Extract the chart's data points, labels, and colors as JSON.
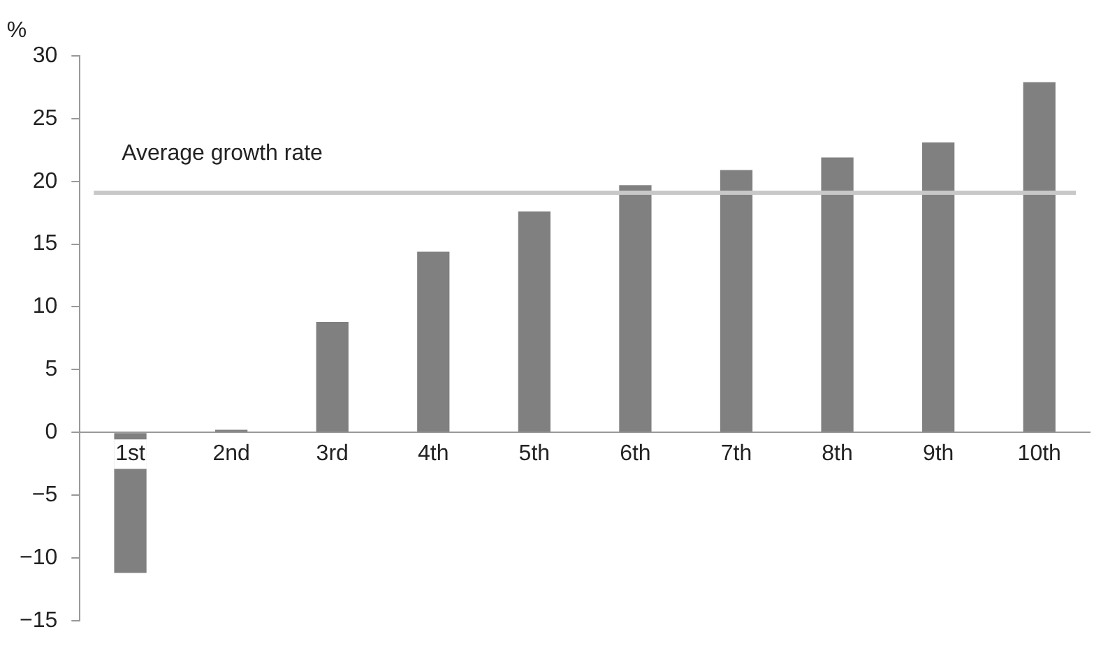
{
  "chart_data": {
    "type": "bar",
    "ylabel": "%",
    "categories": [
      "1st",
      "2nd",
      "3rd",
      "4th",
      "5th",
      "6th",
      "7th",
      "8th",
      "9th",
      "10th"
    ],
    "values": [
      -11.2,
      0.2,
      8.8,
      14.4,
      17.6,
      19.7,
      20.9,
      21.9,
      23.1,
      27.9
    ],
    "color": "#808080",
    "ylim": [
      -15,
      30
    ],
    "yticks": [
      {
        "value": -15,
        "label": "−15"
      },
      {
        "value": -10,
        "label": "−10"
      },
      {
        "value": -5,
        "label": "−5"
      },
      0,
      5,
      10,
      15,
      20,
      25,
      30
    ],
    "ref_lines": [
      {
        "axis": "y",
        "value": 19.1,
        "label": "Average growth rate",
        "color": "#c8c8c8"
      }
    ],
    "grid": false,
    "legend": false
  }
}
